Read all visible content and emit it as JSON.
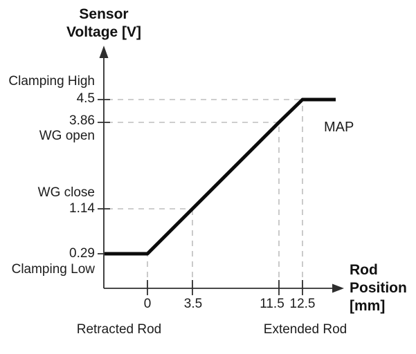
{
  "figure": {
    "y_axis_title": "Sensor\nVoltage [V]",
    "x_axis_title": "Rod\nPosition\n[mm]",
    "series_label": "MAP",
    "labels": {
      "clamping_high": "Clamping High",
      "wg_open": "WG open",
      "wg_close": "WG close",
      "clamping_low": "Clamping Low",
      "retracted_rod": "Retracted Rod",
      "extended_rod": "Extended Rod"
    }
  },
  "chart_data": {
    "type": "line",
    "title": "",
    "xlabel": "Rod Position [mm]",
    "ylabel": "Sensor Voltage [V]",
    "x_ticks": [
      0,
      3.5,
      11.5,
      12.5
    ],
    "y_ticks": [
      0.29,
      1.14,
      3.86,
      4.5
    ],
    "xlim": [
      -3.5,
      16
    ],
    "ylim": [
      0,
      5.3
    ],
    "grid": "dashed guide lines connect each tick to the curve",
    "legend_position": "label MAP right of the upper plateau",
    "series": [
      {
        "name": "MAP",
        "points": [
          {
            "x": 0,
            "v": 0.29
          },
          {
            "x": 3.5,
            "v": 1.14
          },
          {
            "x": 11.5,
            "v": 3.86
          },
          {
            "x": 12.5,
            "v": 4.5
          }
        ],
        "clamp_low_voltage": 0.29,
        "clamp_high_voltage": 4.5,
        "shape": "flat at 0.29 V for rod <= 0 mm, linear rise from 0 to 12.5 mm, flat at 4.5 V for rod >= 12.5 mm"
      }
    ],
    "key_points": [
      {
        "label": "Clamping Low",
        "voltage": 0.29,
        "rod_position_mm": 0
      },
      {
        "label": "WG close",
        "voltage": 1.14,
        "rod_position_mm": 3.5
      },
      {
        "label": "WG open",
        "voltage": 3.86,
        "rod_position_mm": 11.5
      },
      {
        "label": "Clamping High",
        "voltage": 4.5,
        "rod_position_mm": 12.5
      }
    ],
    "x_region_labels": [
      {
        "label": "Retracted Rod",
        "position": "below axis near 0 mm"
      },
      {
        "label": "Extended Rod",
        "position": "below axis near 12 mm"
      }
    ]
  },
  "colors": {
    "background": "#ffffff",
    "curve": "#0b0b0b",
    "axis": "#2e2e2e",
    "guide_dash": "#bdbdbd",
    "text": "#1c1c1c"
  }
}
